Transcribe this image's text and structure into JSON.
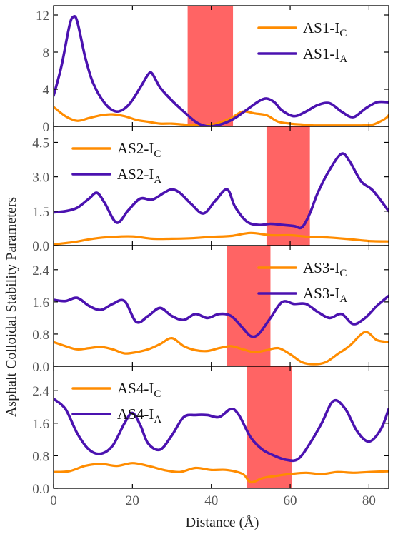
{
  "chart_data": {
    "type": "line",
    "xlabel": "Distance (Å)",
    "ylabel": "Asphalt Colloidal Stability Parameters",
    "xlim": [
      0,
      85
    ],
    "xticks": [
      "0",
      "20",
      "40",
      "60",
      "80"
    ],
    "colors": {
      "ic": "#ff8c00",
      "ia": "#4b12b0",
      "band": "#ff3030"
    },
    "panels": [
      {
        "ylim": [
          0,
          13
        ],
        "yticks": [
          "0",
          "4",
          "8",
          "12"
        ],
        "band": [
          34,
          45.5
        ],
        "legend": {
          "position": "top-right",
          "order": [
            "IC",
            "IA"
          ]
        },
        "series": [
          {
            "name": "AS1-IC",
            "label_main": "AS1-I",
            "label_sub": "C",
            "role": "IC",
            "x": [
              0,
              3,
              6,
              9,
              12,
              15,
              18,
              21,
              24,
              27,
              30,
              33,
              36,
              39,
              42,
              45,
              48,
              51,
              54,
              57,
              60,
              63,
              66,
              69,
              72,
              75,
              78,
              81,
              84,
              85
            ],
            "y": [
              2.1,
              1.1,
              0.6,
              0.9,
              1.2,
              1.3,
              1.1,
              0.7,
              0.5,
              0.3,
              0.3,
              0.2,
              0.1,
              0.1,
              0.4,
              0.9,
              1.6,
              1.4,
              1.2,
              0.5,
              0.3,
              0.2,
              0.1,
              0.1,
              0.1,
              0.1,
              0.1,
              0.2,
              0.8,
              1.2
            ]
          },
          {
            "name": "AS1-IA",
            "label_main": "AS1-I",
            "label_sub": "A",
            "role": "IA",
            "x": [
              0,
              2,
              4,
              5,
              6,
              8,
              10,
              13,
              16,
              19,
              22,
              24,
              25,
              27,
              30,
              33,
              36,
              38,
              40,
              43,
              46,
              49,
              52,
              54,
              56,
              58,
              61,
              64,
              67,
              70,
              73,
              76,
              79,
              82,
              85
            ],
            "y": [
              3.3,
              6.5,
              10.8,
              11.8,
              11.3,
              7.5,
              4.7,
              2.5,
              1.6,
              2.3,
              4.2,
              5.6,
              5.7,
              4.2,
              2.8,
              1.6,
              0.5,
              0.1,
              0.0,
              0.3,
              0.9,
              1.8,
              2.7,
              3.0,
              2.6,
              1.7,
              1.1,
              1.6,
              2.3,
              2.5,
              1.6,
              1.0,
              1.9,
              2.6,
              2.6
            ]
          }
        ]
      },
      {
        "ylim": [
          0,
          5.2
        ],
        "yticks": [
          "0.0",
          "1.5",
          "3.0",
          "4.5"
        ],
        "band": [
          54,
          65
        ],
        "legend": {
          "position": "top-left",
          "order": [
            "IC",
            "IA"
          ]
        },
        "series": [
          {
            "name": "AS2-IC",
            "label_main": "AS2-I",
            "label_sub": "C",
            "role": "IC",
            "x": [
              0,
              5,
              10,
              15,
              20,
              25,
              30,
              35,
              40,
              45,
              50,
              55,
              60,
              65,
              70,
              75,
              80,
              85
            ],
            "y": [
              0.05,
              0.15,
              0.3,
              0.38,
              0.4,
              0.3,
              0.3,
              0.32,
              0.38,
              0.42,
              0.55,
              0.45,
              0.45,
              0.38,
              0.35,
              0.28,
              0.2,
              0.18
            ]
          },
          {
            "name": "AS2-IA",
            "label_main": "AS2-I",
            "label_sub": "A",
            "role": "IA",
            "x": [
              0,
              3,
              6,
              9,
              11,
              13,
              16,
              19,
              22,
              25,
              28,
              30,
              32,
              35,
              38,
              41,
              44,
              46,
              49,
              52,
              55,
              58,
              61,
              63,
              65,
              67,
              70,
              73,
              75,
              78,
              81,
              85
            ],
            "y": [
              1.45,
              1.5,
              1.65,
              2.05,
              2.3,
              1.85,
              1.0,
              1.55,
              2.05,
              2.0,
              2.3,
              2.45,
              2.3,
              1.8,
              1.4,
              1.95,
              2.45,
              1.7,
              1.05,
              0.9,
              0.95,
              0.9,
              0.85,
              0.8,
              1.4,
              2.3,
              3.3,
              4.0,
              3.7,
              2.8,
              2.4,
              1.5
            ]
          }
        ]
      },
      {
        "ylim": [
          0,
          3.0
        ],
        "yticks": [
          "0.0",
          "0.8",
          "1.6",
          "2.4"
        ],
        "band": [
          44,
          55
        ],
        "legend": {
          "position": "top-right",
          "order": [
            "IC",
            "IA"
          ]
        },
        "series": [
          {
            "name": "AS3-IC",
            "label_main": "AS3-I",
            "label_sub": "C",
            "role": "IC",
            "x": [
              0,
              3,
              6,
              9,
              12,
              15,
              18,
              21,
              24,
              27,
              30,
              33,
              36,
              39,
              42,
              45,
              48,
              51,
              54,
              57,
              60,
              63,
              66,
              69,
              72,
              75,
              79,
              82,
              85
            ],
            "y": [
              0.6,
              0.5,
              0.42,
              0.45,
              0.48,
              0.42,
              0.32,
              0.35,
              0.42,
              0.55,
              0.7,
              0.5,
              0.4,
              0.38,
              0.45,
              0.5,
              0.42,
              0.35,
              0.4,
              0.45,
              0.3,
              0.1,
              0.05,
              0.1,
              0.3,
              0.5,
              0.85,
              0.65,
              0.6
            ]
          },
          {
            "name": "AS3-IA",
            "label_main": "AS3-I",
            "label_sub": "A",
            "role": "IA",
            "x": [
              0,
              3,
              6,
              9,
              12,
              15,
              18,
              21,
              24,
              27,
              30,
              33,
              36,
              39,
              42,
              45,
              48,
              50,
              52,
              55,
              58,
              61,
              64,
              67,
              70,
              73,
              76,
              79,
              82,
              85
            ],
            "y": [
              1.65,
              1.62,
              1.7,
              1.5,
              1.4,
              1.55,
              1.62,
              1.1,
              1.25,
              1.45,
              1.25,
              1.15,
              1.3,
              1.2,
              1.3,
              1.25,
              0.95,
              0.75,
              0.8,
              1.2,
              1.6,
              1.55,
              1.55,
              1.35,
              1.2,
              1.3,
              1.05,
              1.2,
              1.5,
              1.75
            ]
          }
        ]
      },
      {
        "ylim": [
          0,
          3.0
        ],
        "yticks": [
          "0.0",
          "0.8",
          "1.6",
          "2.4"
        ],
        "band": [
          49,
          60.5
        ],
        "legend": {
          "position": "top-left",
          "order": [
            "IC",
            "IA"
          ]
        },
        "series": [
          {
            "name": "AS4-IC",
            "label_main": "AS4-I",
            "label_sub": "C",
            "role": "IC",
            "x": [
              0,
              4,
              8,
              12,
              16,
              20,
              24,
              28,
              32,
              36,
              40,
              44,
              48,
              50,
              53,
              56,
              60,
              64,
              68,
              72,
              76,
              80,
              85
            ],
            "y": [
              0.4,
              0.42,
              0.55,
              0.6,
              0.55,
              0.62,
              0.55,
              0.45,
              0.4,
              0.5,
              0.45,
              0.45,
              0.35,
              0.15,
              0.25,
              0.3,
              0.35,
              0.38,
              0.35,
              0.4,
              0.38,
              0.4,
              0.42
            ]
          },
          {
            "name": "AS4-IA",
            "label_main": "AS4-I",
            "label_sub": "A",
            "role": "IA",
            "x": [
              0,
              3,
              6,
              9,
              12,
              15,
              18,
              20,
              22,
              24,
              27,
              30,
              33,
              36,
              39,
              42,
              45,
              47,
              50,
              53,
              56,
              59,
              62,
              65,
              68,
              71,
              74,
              77,
              80,
              83,
              85
            ],
            "y": [
              2.2,
              1.95,
              1.35,
              0.95,
              0.85,
              1.05,
              1.6,
              1.85,
              1.55,
              1.1,
              0.95,
              1.3,
              1.75,
              1.8,
              1.8,
              1.75,
              1.95,
              1.8,
              1.25,
              0.95,
              0.8,
              0.7,
              0.72,
              1.1,
              1.6,
              2.15,
              1.95,
              1.4,
              1.15,
              1.45,
              1.95
            ]
          }
        ]
      }
    ]
  }
}
